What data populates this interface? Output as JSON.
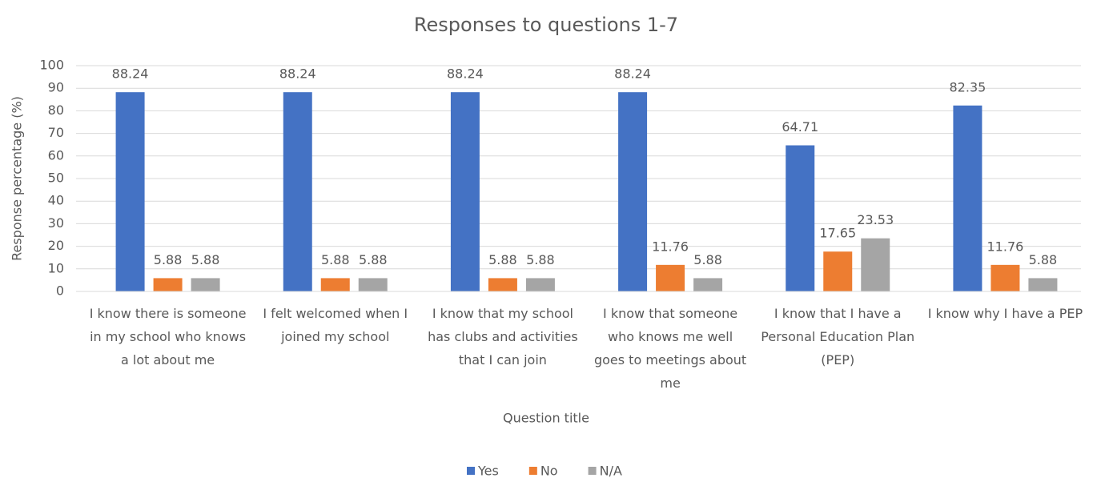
{
  "chart_data": {
    "type": "bar",
    "title": "Responses to questions 1-7",
    "x_label": "Question title",
    "y_label": "Response percentage (%)",
    "categories": [
      "I know there is someone in my school who knows a lot about me",
      "I felt welcomed when I joined my school",
      "I know that my school has clubs and activities that I can join",
      "I know that someone who knows me well goes to meetings about me",
      "I know that I have a Personal Education Plan (PEP)",
      "I know why I have a PEP"
    ],
    "series": [
      {
        "name": "Yes",
        "color": "#4472c4",
        "values": [
          88.24,
          88.24,
          88.24,
          88.24,
          64.71,
          82.35
        ]
      },
      {
        "name": "No",
        "color": "#ed7d31",
        "values": [
          5.88,
          5.88,
          5.88,
          11.76,
          17.65,
          11.76
        ]
      },
      {
        "name": "N/A",
        "color": "#a5a5a5",
        "values": [
          5.88,
          5.88,
          5.88,
          5.88,
          23.53,
          5.88
        ]
      }
    ],
    "ylim": [
      0,
      100
    ],
    "yticks": [
      0,
      10,
      20,
      30,
      40,
      50,
      60,
      70,
      80,
      90,
      100
    ],
    "grid": true,
    "legend": "bottom"
  }
}
